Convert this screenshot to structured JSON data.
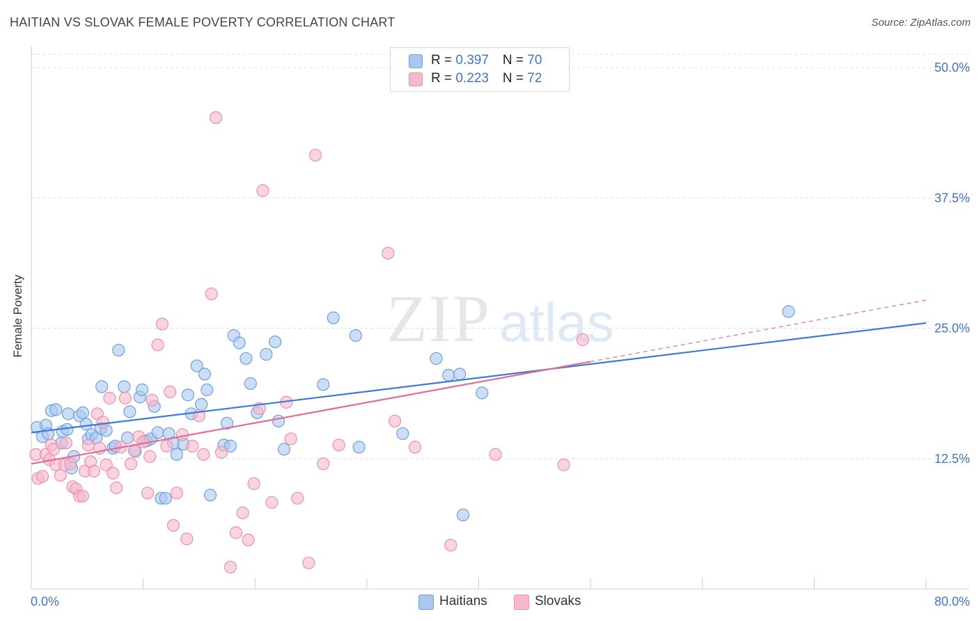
{
  "header": {
    "title": "HAITIAN VS SLOVAK FEMALE POVERTY CORRELATION CHART",
    "source": "Source: ZipAtlas.com"
  },
  "watermark": {
    "zip": "ZIP",
    "atlas": "atlas"
  },
  "legend": {
    "rows": [
      {
        "r_label": "R = ",
        "r_value": "0.397",
        "n_label": "N = ",
        "n_value": "70"
      },
      {
        "r_label": "R = ",
        "r_value": "0.223",
        "n_label": "N = ",
        "n_value": "72"
      }
    ]
  },
  "bottom_legend": {
    "items": [
      "Haitians",
      "Slovaks"
    ]
  },
  "chart_data": {
    "type": "scatter",
    "ylabel": "Female Poverty",
    "xlim": [
      0,
      80
    ],
    "ylim": [
      0,
      50
    ],
    "x_tick_labels": [
      "0.0%",
      "80.0%"
    ],
    "y_ticks": [
      12.5,
      25.0,
      37.5,
      50.0
    ],
    "y_tick_labels": [
      "12.5%",
      "25.0%",
      "37.5%",
      "50.0%"
    ],
    "grid": true,
    "colors": {
      "haitians_fill": "#a9c8f0",
      "haitians_stroke": "#6f9fdc",
      "haitians_line": "#3d7ad6",
      "slovaks_fill": "#f6b8cc",
      "slovaks_stroke": "#ec8fae",
      "slovaks_line": "#e46b96",
      "axis_label": "#4472c4"
    },
    "series": [
      {
        "name": "Haitians",
        "trend": {
          "x0": 0,
          "y0": 15.0,
          "x1": 80,
          "y1": 25.5
        },
        "points": [
          [
            0.5,
            15.5
          ],
          [
            1.0,
            14.6
          ],
          [
            1.3,
            15.7
          ],
          [
            1.5,
            14.9
          ],
          [
            1.8,
            17.1
          ],
          [
            2.2,
            17.2
          ],
          [
            2.7,
            14.0
          ],
          [
            2.8,
            15.1
          ],
          [
            3.2,
            15.3
          ],
          [
            3.3,
            16.8
          ],
          [
            3.6,
            11.6
          ],
          [
            3.8,
            12.7
          ],
          [
            4.3,
            16.6
          ],
          [
            4.6,
            16.9
          ],
          [
            4.9,
            15.8
          ],
          [
            5.1,
            14.4
          ],
          [
            5.4,
            14.8
          ],
          [
            5.8,
            14.5
          ],
          [
            6.2,
            15.4
          ],
          [
            6.3,
            19.4
          ],
          [
            6.7,
            15.2
          ],
          [
            7.3,
            13.5
          ],
          [
            7.5,
            13.7
          ],
          [
            7.8,
            22.9
          ],
          [
            8.3,
            19.4
          ],
          [
            8.6,
            14.5
          ],
          [
            8.8,
            17.0
          ],
          [
            9.3,
            13.2
          ],
          [
            9.7,
            18.4
          ],
          [
            9.9,
            19.1
          ],
          [
            10.3,
            14.2
          ],
          [
            10.7,
            14.4
          ],
          [
            11.0,
            17.5
          ],
          [
            11.3,
            15.0
          ],
          [
            11.6,
            8.7
          ],
          [
            12.0,
            8.7
          ],
          [
            12.3,
            14.9
          ],
          [
            12.7,
            14.0
          ],
          [
            13.0,
            12.9
          ],
          [
            13.6,
            13.9
          ],
          [
            14.0,
            18.6
          ],
          [
            14.3,
            16.8
          ],
          [
            14.8,
            21.4
          ],
          [
            15.2,
            17.7
          ],
          [
            15.5,
            20.6
          ],
          [
            15.7,
            19.1
          ],
          [
            16.0,
            9.0
          ],
          [
            17.2,
            13.8
          ],
          [
            17.5,
            15.9
          ],
          [
            17.8,
            13.7
          ],
          [
            18.1,
            24.3
          ],
          [
            18.6,
            23.6
          ],
          [
            19.2,
            22.1
          ],
          [
            19.6,
            19.7
          ],
          [
            20.2,
            16.9
          ],
          [
            21.0,
            22.5
          ],
          [
            21.8,
            23.7
          ],
          [
            22.1,
            16.1
          ],
          [
            22.6,
            13.4
          ],
          [
            26.1,
            19.6
          ],
          [
            27.0,
            26.0
          ],
          [
            29.0,
            24.3
          ],
          [
            29.3,
            13.6
          ],
          [
            33.2,
            14.9
          ],
          [
            36.2,
            22.1
          ],
          [
            37.3,
            20.5
          ],
          [
            38.3,
            20.6
          ],
          [
            38.6,
            7.1
          ],
          [
            40.3,
            18.8
          ],
          [
            67.7,
            26.6
          ]
        ]
      },
      {
        "name": "Slovaks",
        "trend": {
          "x0": 0,
          "y0": 12.0,
          "x1": 50,
          "y1": 21.8,
          "dash_x1": 80,
          "dash_y1": 27.7
        },
        "points": [
          [
            0.4,
            12.9
          ],
          [
            0.6,
            10.6
          ],
          [
            1.0,
            10.8
          ],
          [
            1.3,
            12.9
          ],
          [
            1.6,
            12.4
          ],
          [
            1.8,
            13.8
          ],
          [
            2.2,
            11.9
          ],
          [
            2.6,
            10.9
          ],
          [
            3.0,
            11.9
          ],
          [
            3.1,
            14.0
          ],
          [
            3.5,
            12.0
          ],
          [
            3.7,
            9.8
          ],
          [
            4.0,
            9.6
          ],
          [
            4.3,
            8.9
          ],
          [
            4.6,
            8.9
          ],
          [
            4.8,
            11.3
          ],
          [
            5.1,
            13.8
          ],
          [
            5.3,
            12.2
          ],
          [
            5.6,
            11.3
          ],
          [
            5.9,
            16.8
          ],
          [
            6.1,
            13.5
          ],
          [
            6.4,
            16.0
          ],
          [
            6.7,
            11.9
          ],
          [
            7.0,
            18.3
          ],
          [
            7.3,
            11.1
          ],
          [
            7.6,
            9.7
          ],
          [
            8.0,
            13.6
          ],
          [
            8.4,
            18.3
          ],
          [
            8.9,
            12.0
          ],
          [
            9.2,
            13.3
          ],
          [
            9.6,
            14.6
          ],
          [
            10.0,
            14.1
          ],
          [
            10.4,
            9.2
          ],
          [
            10.8,
            18.1
          ],
          [
            11.3,
            23.4
          ],
          [
            11.7,
            25.4
          ],
          [
            12.1,
            13.7
          ],
          [
            12.4,
            18.9
          ],
          [
            12.7,
            6.1
          ],
          [
            13.0,
            9.2
          ],
          [
            13.5,
            14.8
          ],
          [
            13.9,
            4.8
          ],
          [
            14.4,
            13.7
          ],
          [
            15.4,
            12.9
          ],
          [
            16.1,
            28.3
          ],
          [
            16.5,
            45.2
          ],
          [
            17.0,
            13.1
          ],
          [
            17.8,
            2.1
          ],
          [
            18.3,
            5.4
          ],
          [
            18.9,
            7.3
          ],
          [
            19.4,
            4.7
          ],
          [
            19.9,
            10.1
          ],
          [
            20.4,
            17.3
          ],
          [
            21.5,
            8.3
          ],
          [
            23.2,
            14.4
          ],
          [
            23.8,
            8.7
          ],
          [
            24.8,
            2.5
          ],
          [
            25.4,
            41.6
          ],
          [
            26.1,
            12.0
          ],
          [
            27.5,
            13.8
          ],
          [
            31.9,
            32.2
          ],
          [
            32.5,
            16.1
          ],
          [
            34.3,
            13.6
          ],
          [
            37.5,
            4.2
          ],
          [
            41.5,
            12.9
          ],
          [
            47.6,
            11.9
          ],
          [
            49.3,
            23.9
          ],
          [
            20.7,
            38.2
          ],
          [
            15.0,
            16.6
          ],
          [
            22.8,
            17.9
          ],
          [
            10.6,
            12.7
          ],
          [
            2.0,
            13.4
          ]
        ]
      }
    ]
  }
}
